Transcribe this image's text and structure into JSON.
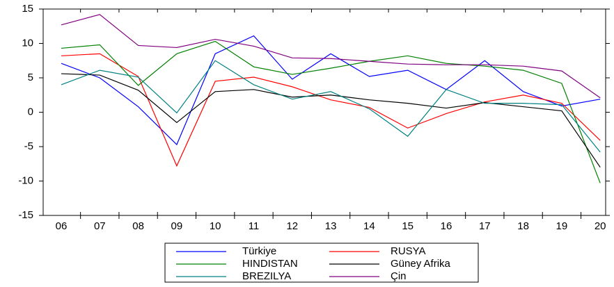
{
  "chart_data": {
    "type": "line",
    "categories": [
      "06",
      "07",
      "08",
      "09",
      "10",
      "11",
      "12",
      "13",
      "14",
      "15",
      "16",
      "17",
      "18",
      "19",
      "20"
    ],
    "series": [
      {
        "name": "Türkiye",
        "color": "#0000ff",
        "values": [
          7.1,
          5.0,
          0.8,
          -4.7,
          8.5,
          11.1,
          4.8,
          8.5,
          5.2,
          6.1,
          3.3,
          7.5,
          3.0,
          0.9,
          1.9
        ]
      },
      {
        "name": "RUSYA",
        "color": "#ff0000",
        "values": [
          8.2,
          8.5,
          5.2,
          -7.8,
          4.5,
          5.1,
          3.7,
          1.8,
          0.7,
          -2.3,
          -0.2,
          1.5,
          2.5,
          1.3,
          -4.1
        ]
      },
      {
        "name": "HINDISTAN",
        "color": "#008000",
        "values": [
          9.3,
          9.8,
          3.9,
          8.5,
          10.3,
          6.6,
          5.5,
          6.4,
          7.4,
          8.2,
          7.1,
          6.7,
          6.1,
          4.2,
          -10.3
        ]
      },
      {
        "name": "Güney Afrika",
        "color": "#000000",
        "values": [
          5.6,
          5.4,
          3.2,
          -1.5,
          3.0,
          3.3,
          2.2,
          2.5,
          1.8,
          1.3,
          0.6,
          1.4,
          0.8,
          0.2,
          -8.0
        ]
      },
      {
        "name": "BREZILYA",
        "color": "#008080",
        "values": [
          4.0,
          6.1,
          5.1,
          -0.1,
          7.5,
          4.0,
          1.9,
          3.0,
          0.5,
          -3.5,
          3.3,
          1.3,
          1.3,
          1.1,
          -5.8
        ]
      },
      {
        "name": "Çin",
        "color": "#800080",
        "values": [
          12.7,
          14.2,
          9.7,
          9.4,
          10.6,
          9.6,
          7.9,
          7.8,
          7.4,
          7.0,
          6.9,
          6.9,
          6.7,
          6.0,
          2.1
        ]
      }
    ],
    "ylim": [
      -15,
      15
    ],
    "yticks": [
      -15,
      -10,
      -5,
      0,
      5,
      10,
      15
    ],
    "grid": false,
    "legend": "bottom"
  }
}
